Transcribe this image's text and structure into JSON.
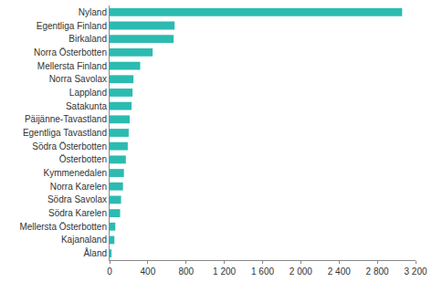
{
  "chart_data": {
    "type": "bar",
    "orientation": "horizontal",
    "categories": [
      "Nyland",
      "Egentliga Finland",
      "Birkaland",
      "Norra Österbotten",
      "Mellersta Finland",
      "Norra Savolax",
      "Lappland",
      "Satakunta",
      "Päijänne-Tavastland",
      "Egentliga Tavastland",
      "Södra Österbotten",
      "Österbotten",
      "Kymmenedalen",
      "Norra Karelen",
      "Södra Savolax",
      "Södra Karelen",
      "Mellersta Österbotten",
      "Kajanaland",
      "Åland"
    ],
    "values": [
      3060,
      680,
      670,
      450,
      320,
      250,
      240,
      230,
      210,
      200,
      190,
      170,
      150,
      140,
      120,
      110,
      60,
      50,
      20
    ],
    "color": "#2cbbb0",
    "xlim": [
      0,
      3200
    ],
    "xticks": [
      0,
      400,
      800,
      {
        "value": 1200,
        "label": "1 200"
      },
      {
        "value": 1600,
        "label": "1 600"
      },
      {
        "value": 2000,
        "label": "2 000"
      },
      {
        "value": 2400,
        "label": "2 400"
      },
      {
        "value": 2800,
        "label": "2 800"
      },
      {
        "value": 3200,
        "label": "3 200"
      }
    ],
    "grid": false
  }
}
